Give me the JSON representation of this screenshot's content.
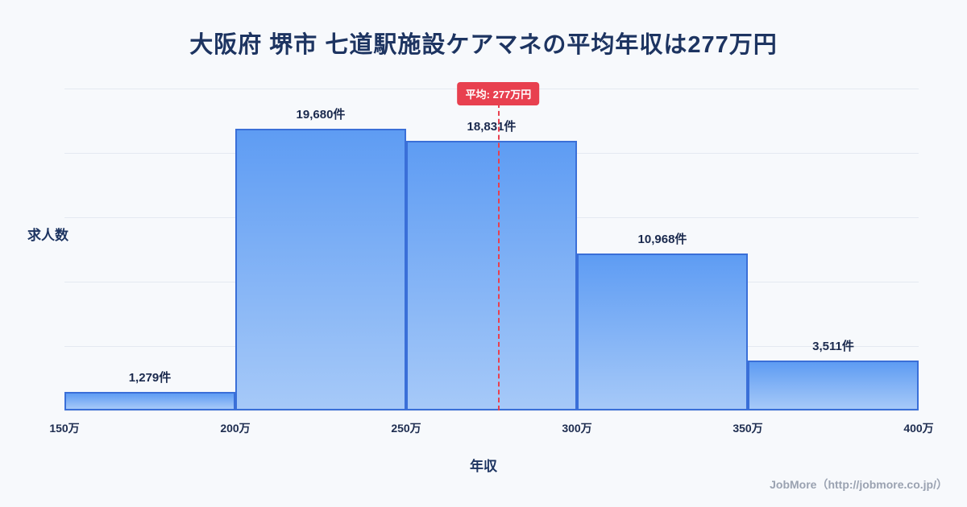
{
  "page": {
    "footer": "JobMore（http://jobmore.co.jp/）"
  },
  "chart_data": {
    "type": "bar",
    "title": "大阪府 堺市 七道駅施設ケアマネの平均年収は277万円",
    "categories": [
      "150万-200万",
      "200万-250万",
      "250万-300万",
      "300万-350万",
      "350万-400万"
    ],
    "values": [
      1279,
      19680,
      18831,
      10968,
      3511
    ],
    "value_labels": [
      "1,279件",
      "19,680件",
      "18,831件",
      "10,968件",
      "3,511件"
    ],
    "x_tick_labels": [
      "150万",
      "200万",
      "250万",
      "300万",
      "350万",
      "400万"
    ],
    "xlabel": "年収",
    "ylabel": "求人数",
    "x_range": [
      150,
      400
    ],
    "ylim": [
      0,
      19680
    ],
    "mean": 277,
    "mean_label": "平均: 277万円",
    "grid": true,
    "legend": false,
    "colors": {
      "bar_fill_top": "#5e9cf3",
      "bar_fill_bottom": "#a6c9f8",
      "bar_border": "#3a6fd8",
      "mean_line": "#e8404f",
      "title_text": "#1d3461",
      "background": "#f7f9fc"
    }
  }
}
